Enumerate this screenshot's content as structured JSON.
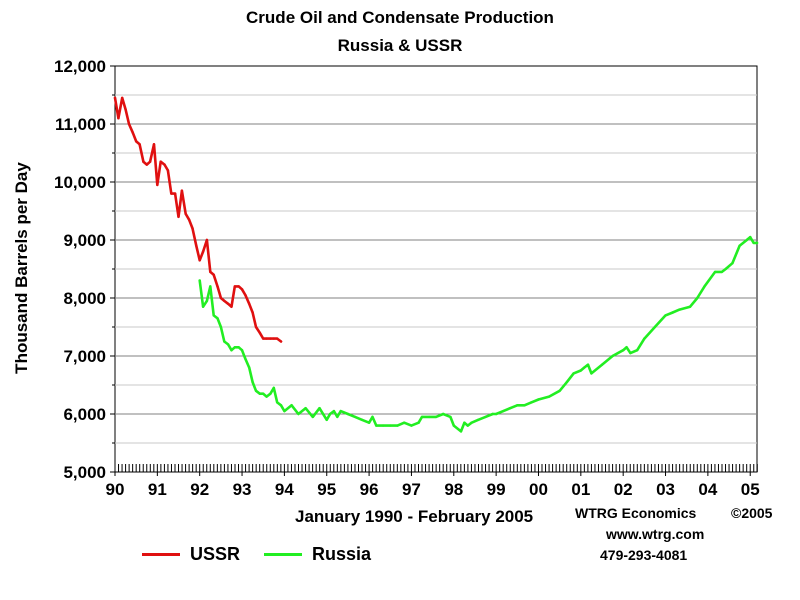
{
  "chart_data": {
    "type": "line",
    "title": "Crude Oil and Condensate Production",
    "subtitle": "Russia & USSR",
    "xlabel": "January 1990 - February 2005",
    "ylabel": "Thousand Barrels per Day",
    "ylim": [
      5000,
      12000
    ],
    "xlim": [
      1990.0,
      2005.16
    ],
    "y_ticks": [
      5000,
      6000,
      7000,
      8000,
      9000,
      10000,
      11000,
      12000
    ],
    "y_tick_labels": [
      "5,000",
      "6,000",
      "7,000",
      "8,000",
      "9,000",
      "10,000",
      "11,000",
      "12,000"
    ],
    "x_ticks": [
      1990,
      1991,
      1992,
      1993,
      1994,
      1995,
      1996,
      1997,
      1998,
      1999,
      2000,
      2001,
      2002,
      2003,
      2004,
      2005
    ],
    "x_tick_labels": [
      "90",
      "91",
      "92",
      "93",
      "94",
      "95",
      "96",
      "97",
      "98",
      "99",
      "00",
      "01",
      "02",
      "03",
      "04",
      "05"
    ],
    "grid": true,
    "legend": "bottom-left",
    "series": [
      {
        "name": "USSR",
        "color": "#e01010",
        "x": [
          1990.0,
          1990.08,
          1990.17,
          1990.25,
          1990.33,
          1990.42,
          1990.5,
          1990.58,
          1990.67,
          1990.75,
          1990.83,
          1990.92,
          1991.0,
          1991.08,
          1991.17,
          1991.25,
          1991.33,
          1991.42,
          1991.5,
          1991.58,
          1991.67,
          1991.75,
          1991.83,
          1991.92,
          1992.0,
          1992.08,
          1992.17,
          1992.25,
          1992.33,
          1992.42,
          1992.5,
          1992.58,
          1992.67,
          1992.75,
          1992.83,
          1992.92,
          1993.0,
          1993.08,
          1993.17,
          1993.25,
          1993.33,
          1993.42,
          1993.5,
          1993.58,
          1993.67,
          1993.75,
          1993.83,
          1993.92
        ],
        "values": [
          11450,
          11100,
          11450,
          11250,
          11000,
          10850,
          10700,
          10650,
          10350,
          10300,
          10350,
          10650,
          9950,
          10350,
          10300,
          10200,
          9800,
          9800,
          9400,
          9850,
          9450,
          9350,
          9200,
          8900,
          8650,
          8800,
          9000,
          8450,
          8400,
          8200,
          8000,
          7950,
          7900,
          7850,
          8200,
          8200,
          8150,
          8050,
          7900,
          7750,
          7500,
          7400,
          7300,
          7300,
          7300,
          7300,
          7300,
          7250
        ]
      },
      {
        "name": "Russia",
        "color": "#22ee22",
        "x": [
          1992.0,
          1992.08,
          1992.17,
          1992.25,
          1992.33,
          1992.42,
          1992.5,
          1992.58,
          1992.67,
          1992.75,
          1992.83,
          1992.92,
          1993.0,
          1993.08,
          1993.17,
          1993.25,
          1993.33,
          1993.42,
          1993.5,
          1993.58,
          1993.67,
          1993.75,
          1993.83,
          1993.92,
          1994.0,
          1994.17,
          1994.33,
          1994.5,
          1994.67,
          1994.83,
          1995.0,
          1995.08,
          1995.17,
          1995.25,
          1995.33,
          1995.5,
          1995.67,
          1995.83,
          1996.0,
          1996.08,
          1996.17,
          1996.33,
          1996.5,
          1996.67,
          1996.83,
          1997.0,
          1997.17,
          1997.25,
          1997.42,
          1997.58,
          1997.75,
          1997.92,
          1998.0,
          1998.17,
          1998.25,
          1998.33,
          1998.42,
          1998.58,
          1998.75,
          1998.92,
          1999.0,
          1999.17,
          1999.33,
          1999.5,
          1999.67,
          1999.83,
          2000.0,
          2000.25,
          2000.5,
          2000.67,
          2000.83,
          2001.0,
          2001.08,
          2001.17,
          2001.25,
          2001.5,
          2001.75,
          2002.0,
          2002.08,
          2002.17,
          2002.33,
          2002.5,
          2002.75,
          2003.0,
          2003.17,
          2003.33,
          2003.58,
          2003.75,
          2003.92,
          2004.17,
          2004.33,
          2004.42,
          2004.58,
          2004.75,
          2004.92,
          2005.0,
          2005.08,
          2005.16
        ],
        "values": [
          8300,
          7850,
          7950,
          8200,
          7700,
          7650,
          7500,
          7250,
          7200,
          7100,
          7150,
          7150,
          7100,
          6950,
          6800,
          6550,
          6400,
          6350,
          6350,
          6300,
          6350,
          6450,
          6200,
          6150,
          6050,
          6150,
          6000,
          6100,
          5950,
          6100,
          5900,
          6000,
          6050,
          5950,
          6050,
          6000,
          5950,
          5900,
          5850,
          5950,
          5800,
          5800,
          5800,
          5800,
          5850,
          5800,
          5850,
          5950,
          5950,
          5950,
          6000,
          5950,
          5800,
          5700,
          5850,
          5800,
          5850,
          5900,
          5950,
          6000,
          6000,
          6050,
          6100,
          6150,
          6150,
          6200,
          6250,
          6300,
          6400,
          6550,
          6700,
          6750,
          6800,
          6850,
          6700,
          6850,
          7000,
          7100,
          7150,
          7050,
          7100,
          7300,
          7500,
          7700,
          7750,
          7800,
          7850,
          8000,
          8200,
          8450,
          8450,
          8500,
          8600,
          8900,
          9000,
          9050,
          8950,
          8950
        ]
      }
    ]
  },
  "credit": {
    "name": "WTRG Economics",
    "copyright": "©2005",
    "url": "www.wtrg.com",
    "phone": "479-293-4081"
  }
}
